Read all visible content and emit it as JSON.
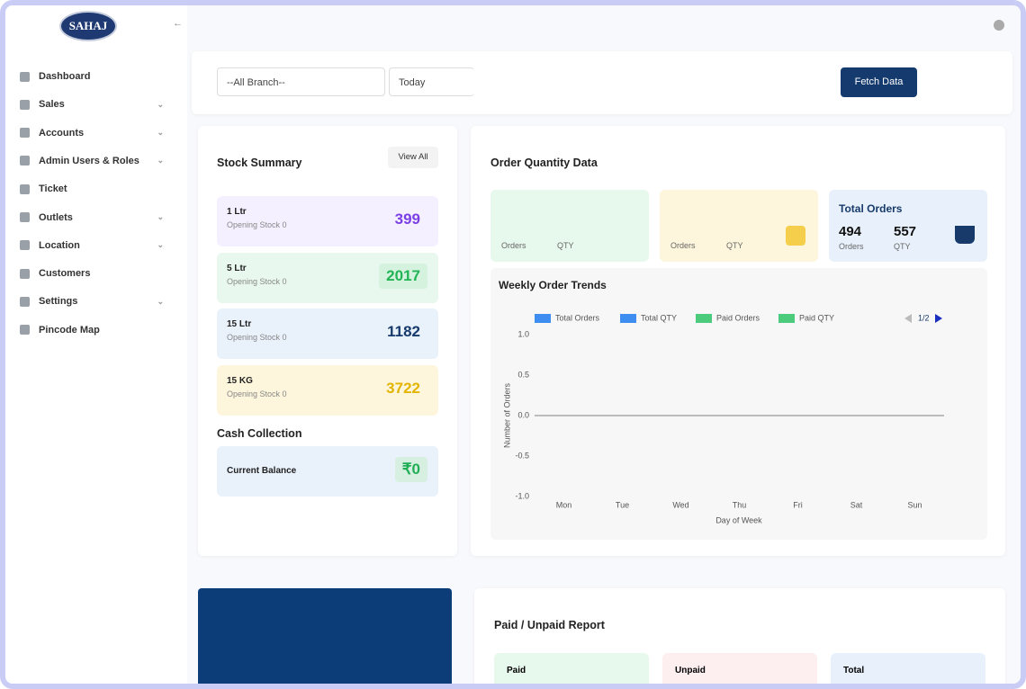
{
  "sidebar": {
    "logo": "SAHAJ",
    "menu": [
      "Dashboard",
      "Sales",
      "Accounts",
      "Admin Users & Roles",
      "Ticket",
      "Outlets",
      "Location",
      "Customers",
      "Settings",
      "Pincode Map"
    ]
  },
  "filters": {
    "branch": "--All Branch--",
    "date": "Today",
    "button": "Fetch Data"
  },
  "stock": {
    "title": "Stock Summary",
    "view_all": "View All",
    "items": [
      {
        "name": "1 Ltr",
        "sub": "Opening Stock 0",
        "value": 399
      },
      {
        "name": "5 Ltr",
        "sub": "Opening Stock 0",
        "value": 2017
      },
      {
        "name": "15 Ltr",
        "sub": "Opening Stock 0",
        "value": 1182
      },
      {
        "name": "15 KG",
        "sub": "Opening Stock 0",
        "value": 3722
      }
    ]
  },
  "cash": {
    "title": "Cash Collection",
    "label": "Current Balance",
    "value": "₹0"
  },
  "orders": {
    "title": "Order Quantity Data",
    "card1": {
      "orders_label": "Orders",
      "qty_label": "QTY"
    },
    "card2": {
      "orders_label": "Orders",
      "qty_label": "QTY"
    },
    "total": {
      "title": "Total Orders",
      "orders": 494,
      "orders_label": "Orders",
      "qty": 557,
      "qty_label": "QTY"
    }
  },
  "chart_data": {
    "type": "line",
    "title": "Weekly Order Trends",
    "categories": [
      "Mon",
      "Tue",
      "Wed",
      "Thu",
      "Fri",
      "Sat",
      "Sun"
    ],
    "x_label": "Day of Week",
    "y_label": "Number of Orders",
    "series": [
      {
        "name": "Total Orders",
        "color": "#3d8ef0"
      },
      {
        "name": "Total QTY",
        "color": "#3d8ef0"
      },
      {
        "name": "Paid Orders",
        "color": "#4ccb7c"
      },
      {
        "name": "Paid QTY",
        "color": "#4ccb7c"
      }
    ],
    "legend_page": "1/2",
    "ylim": [
      -1,
      1
    ],
    "yticks": [
      {
        "value": 1,
        "label": "1.0"
      },
      {
        "value": 0.5,
        "label": "0.5"
      },
      {
        "value": 0,
        "label": "0.0"
      },
      {
        "value": -0.5,
        "label": "-0.5"
      },
      {
        "value": -1,
        "label": "-1.0"
      }
    ],
    "zero_line": true
  },
  "report": {
    "title": "Paid / Unpaid Report",
    "paid": "Paid",
    "unpaid": "Unpaid",
    "total": "Total"
  }
}
